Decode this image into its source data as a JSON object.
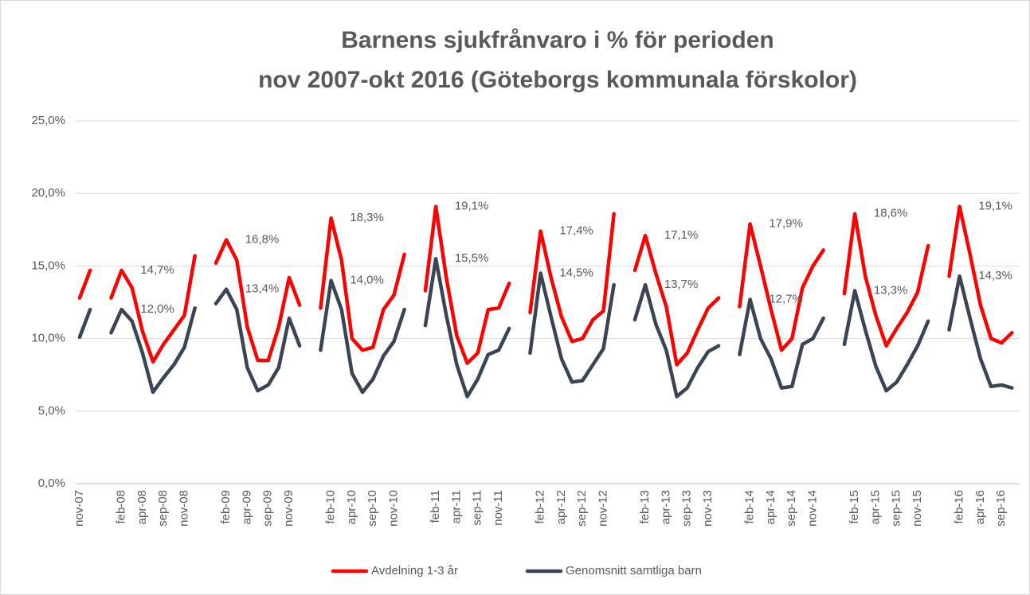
{
  "chart_data": {
    "type": "line",
    "title": [
      "Barnens sjukfrånvaro i % för perioden",
      "nov 2007-okt 2016 (Göteborgs kommunala förskolor)"
    ],
    "categories": [
      "nov-07",
      null,
      null,
      null,
      "feb-08",
      null,
      "apr-08",
      null,
      "sep-08",
      null,
      "nov-08",
      null,
      null,
      null,
      "feb-09",
      null,
      "apr-09",
      null,
      "sep-09",
      null,
      "nov-09",
      null,
      null,
      null,
      "feb-10",
      null,
      "apr-10",
      null,
      "sep-10",
      null,
      "nov-10",
      null,
      null,
      null,
      "feb-11",
      null,
      "apr-11",
      null,
      "sep-11",
      null,
      "nov-11",
      null,
      null,
      null,
      "feb-12",
      null,
      "apr-12",
      null,
      "sep-12",
      null,
      "nov-12",
      null,
      null,
      null,
      "feb-13",
      null,
      "apr-13",
      null,
      "sep-13",
      null,
      "nov-13",
      null,
      null,
      null,
      "feb-14",
      null,
      "apr-14",
      null,
      "sep-14",
      null,
      "nov-14",
      null,
      null,
      null,
      "feb-15",
      null,
      "apr-15",
      null,
      "sep-15",
      null,
      "nov-15",
      null,
      null,
      null,
      "feb-16",
      null,
      "apr-16",
      null,
      "sep-16",
      null
    ],
    "series": [
      {
        "name": "Avdelning 1-3 år",
        "color": "#ff0000",
        "values": [
          12.8,
          14.7,
          null,
          12.8,
          14.7,
          13.5,
          10.5,
          8.4,
          9.6,
          10.6,
          11.6,
          15.7,
          null,
          15.2,
          16.8,
          15.4,
          10.8,
          8.5,
          8.5,
          10.8,
          14.2,
          12.3,
          null,
          12.1,
          18.3,
          15.4,
          10.0,
          9.2,
          9.4,
          12.0,
          13.0,
          15.8,
          null,
          13.3,
          19.1,
          14.2,
          10.2,
          8.3,
          9.0,
          12.0,
          12.1,
          13.8,
          null,
          11.8,
          17.4,
          14.2,
          11.5,
          9.8,
          10.0,
          11.3,
          11.9,
          18.6,
          null,
          14.7,
          17.1,
          14.5,
          12.2,
          8.2,
          9.0,
          10.6,
          12.1,
          12.8,
          null,
          12.2,
          17.9,
          15.0,
          12.0,
          9.2,
          10.0,
          13.5,
          15.0,
          16.1,
          null,
          13.1,
          18.6,
          14.3,
          11.6,
          9.5,
          10.7,
          11.8,
          13.2,
          16.4,
          null,
          14.3,
          19.1,
          15.8,
          12.3,
          10.0,
          9.7,
          10.4
        ],
        "value_labels": [
          null,
          null,
          null,
          null,
          "14,7%",
          null,
          null,
          null,
          null,
          null,
          null,
          null,
          null,
          null,
          "16,8%",
          null,
          null,
          null,
          null,
          null,
          null,
          null,
          null,
          null,
          "18,3%",
          null,
          null,
          null,
          null,
          null,
          null,
          null,
          null,
          null,
          "19,1%",
          null,
          null,
          null,
          null,
          null,
          null,
          null,
          null,
          null,
          "17,4%",
          null,
          null,
          null,
          null,
          null,
          null,
          null,
          null,
          null,
          "17,1%",
          null,
          null,
          null,
          null,
          null,
          null,
          null,
          null,
          null,
          "17,9%",
          null,
          null,
          null,
          null,
          null,
          null,
          null,
          null,
          null,
          "18,6%",
          null,
          null,
          null,
          null,
          null,
          null,
          null,
          null,
          null,
          "19,1%",
          null,
          null,
          null,
          null,
          null
        ]
      },
      {
        "name": "Genomsnitt samtliga barn",
        "color": "#3b4452",
        "values": [
          10.1,
          12.0,
          null,
          10.4,
          12.0,
          11.2,
          9.0,
          6.3,
          7.3,
          8.2,
          9.4,
          12.1,
          null,
          12.4,
          13.4,
          12.0,
          8.0,
          6.4,
          6.8,
          8.0,
          11.4,
          9.5,
          null,
          9.2,
          14.0,
          12.0,
          7.6,
          6.3,
          7.2,
          8.8,
          9.8,
          12.0,
          null,
          10.9,
          15.5,
          11.6,
          8.2,
          6.0,
          7.2,
          8.9,
          9.2,
          10.7,
          null,
          9.0,
          14.5,
          11.5,
          8.6,
          7.0,
          7.1,
          8.2,
          9.3,
          13.7,
          null,
          11.3,
          13.7,
          11.0,
          9.2,
          6.0,
          6.6,
          8.0,
          9.1,
          9.5,
          null,
          8.9,
          12.7,
          10.0,
          8.6,
          6.6,
          6.7,
          9.6,
          10.0,
          11.4,
          null,
          9.6,
          13.3,
          10.6,
          8.1,
          6.4,
          7.0,
          8.2,
          9.5,
          11.2,
          null,
          10.6,
          14.3,
          11.4,
          8.6,
          6.7,
          6.8,
          6.6
        ],
        "value_labels": [
          null,
          null,
          null,
          null,
          "12,0%",
          null,
          null,
          null,
          null,
          null,
          null,
          null,
          null,
          null,
          "13,4%",
          null,
          null,
          null,
          null,
          null,
          null,
          null,
          null,
          null,
          "14,0%",
          null,
          null,
          null,
          null,
          null,
          null,
          null,
          null,
          null,
          "15,5%",
          null,
          null,
          null,
          null,
          null,
          null,
          null,
          null,
          null,
          "14,5%",
          null,
          null,
          null,
          null,
          null,
          null,
          null,
          null,
          null,
          "13,7%",
          null,
          null,
          null,
          null,
          null,
          null,
          null,
          null,
          null,
          "12,7%",
          null,
          null,
          null,
          null,
          null,
          null,
          null,
          null,
          null,
          "13,3%",
          null,
          null,
          null,
          null,
          null,
          null,
          null,
          null,
          null,
          "14,3%",
          null,
          null,
          null,
          null,
          null
        ]
      }
    ],
    "ylim": [
      0,
      25
    ],
    "yticks": [
      {
        "value": 0,
        "label": "0,0%"
      },
      {
        "value": 5,
        "label": "5,0%"
      },
      {
        "value": 10,
        "label": "10,0%"
      },
      {
        "value": 15,
        "label": "15,0%"
      },
      {
        "value": 20,
        "label": "20,0%"
      },
      {
        "value": 25,
        "label": "25,0%"
      }
    ],
    "grid": true,
    "legend": "bottom"
  }
}
